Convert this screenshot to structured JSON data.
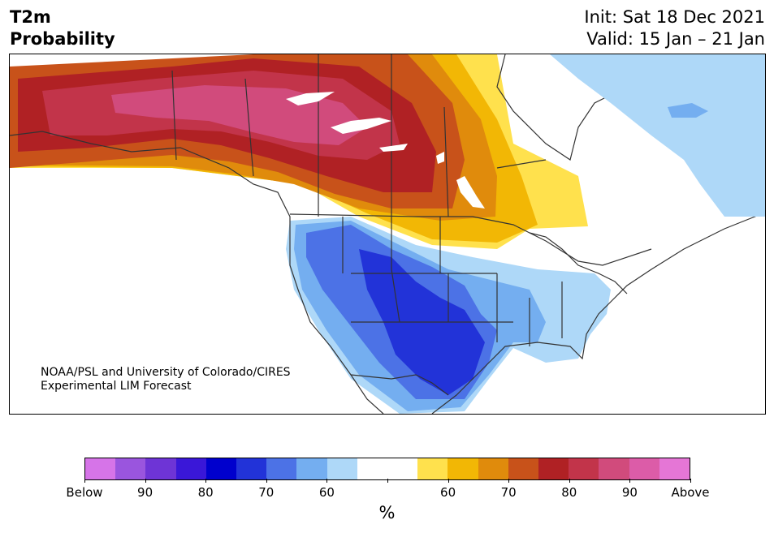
{
  "title": {
    "line1": "T2m",
    "line2": "Probability"
  },
  "dates": {
    "init": "Init: Sat 18 Dec 2021",
    "valid": "Valid: 15 Jan – 21 Jan"
  },
  "credit": {
    "line1": "NOAA/PSL and University of Colorado/CIRES",
    "line2": "Experimental LIM Forecast"
  },
  "colorbar": {
    "colors": [
      "#d674e8",
      "#9a55de",
      "#6e34d6",
      "#3a17d8",
      "#0000cd",
      "#2233d8",
      "#4c72e6",
      "#74aef0",
      "#aed8f8",
      "#ffffff",
      "#ffffff",
      "#ffe14d",
      "#f2b705",
      "#e08b0c",
      "#c8521a",
      "#b02124",
      "#c2344a",
      "#d14b7c",
      "#dc5ca8",
      "#e576d6"
    ],
    "tick_labels": [
      "Below",
      "90",
      "80",
      "70",
      "60",
      "",
      "60",
      "70",
      "80",
      "90",
      "Above"
    ],
    "unit": "%"
  },
  "legend_categories": {
    "below": [
      "60",
      "70",
      "80",
      "90",
      "Below"
    ],
    "above": [
      "60",
      "70",
      "80",
      "90",
      "Above"
    ]
  }
}
